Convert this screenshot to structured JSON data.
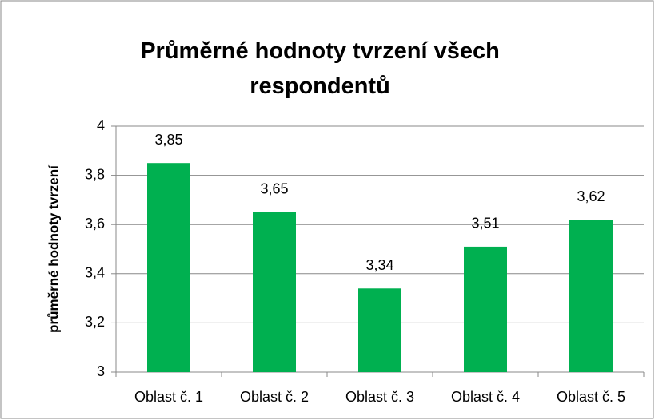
{
  "chart_data": {
    "type": "bar",
    "title": "Průměrné hodnoty tvrzení všech respondentů",
    "y_label": "průměrné hodnoty tvrzení",
    "categories": [
      "Oblast č. 1",
      "Oblast č. 2",
      "Oblast č. 3",
      "Oblast č. 4",
      "Oblast č. 5"
    ],
    "values": [
      3.85,
      3.65,
      3.34,
      3.51,
      3.62
    ],
    "value_labels": [
      "3,85",
      "3,65",
      "3,34",
      "3,51",
      "3,62"
    ],
    "color": "#00b050",
    "ylim": [
      3,
      4
    ],
    "yticks": [
      3,
      {
        "value": 3.2,
        "label": "3,2"
      },
      {
        "value": 3.4,
        "label": "3,4"
      },
      {
        "value": 3.6,
        "label": "3,6"
      },
      {
        "value": 3.8,
        "label": "3,8"
      },
      4
    ],
    "grid": true
  }
}
